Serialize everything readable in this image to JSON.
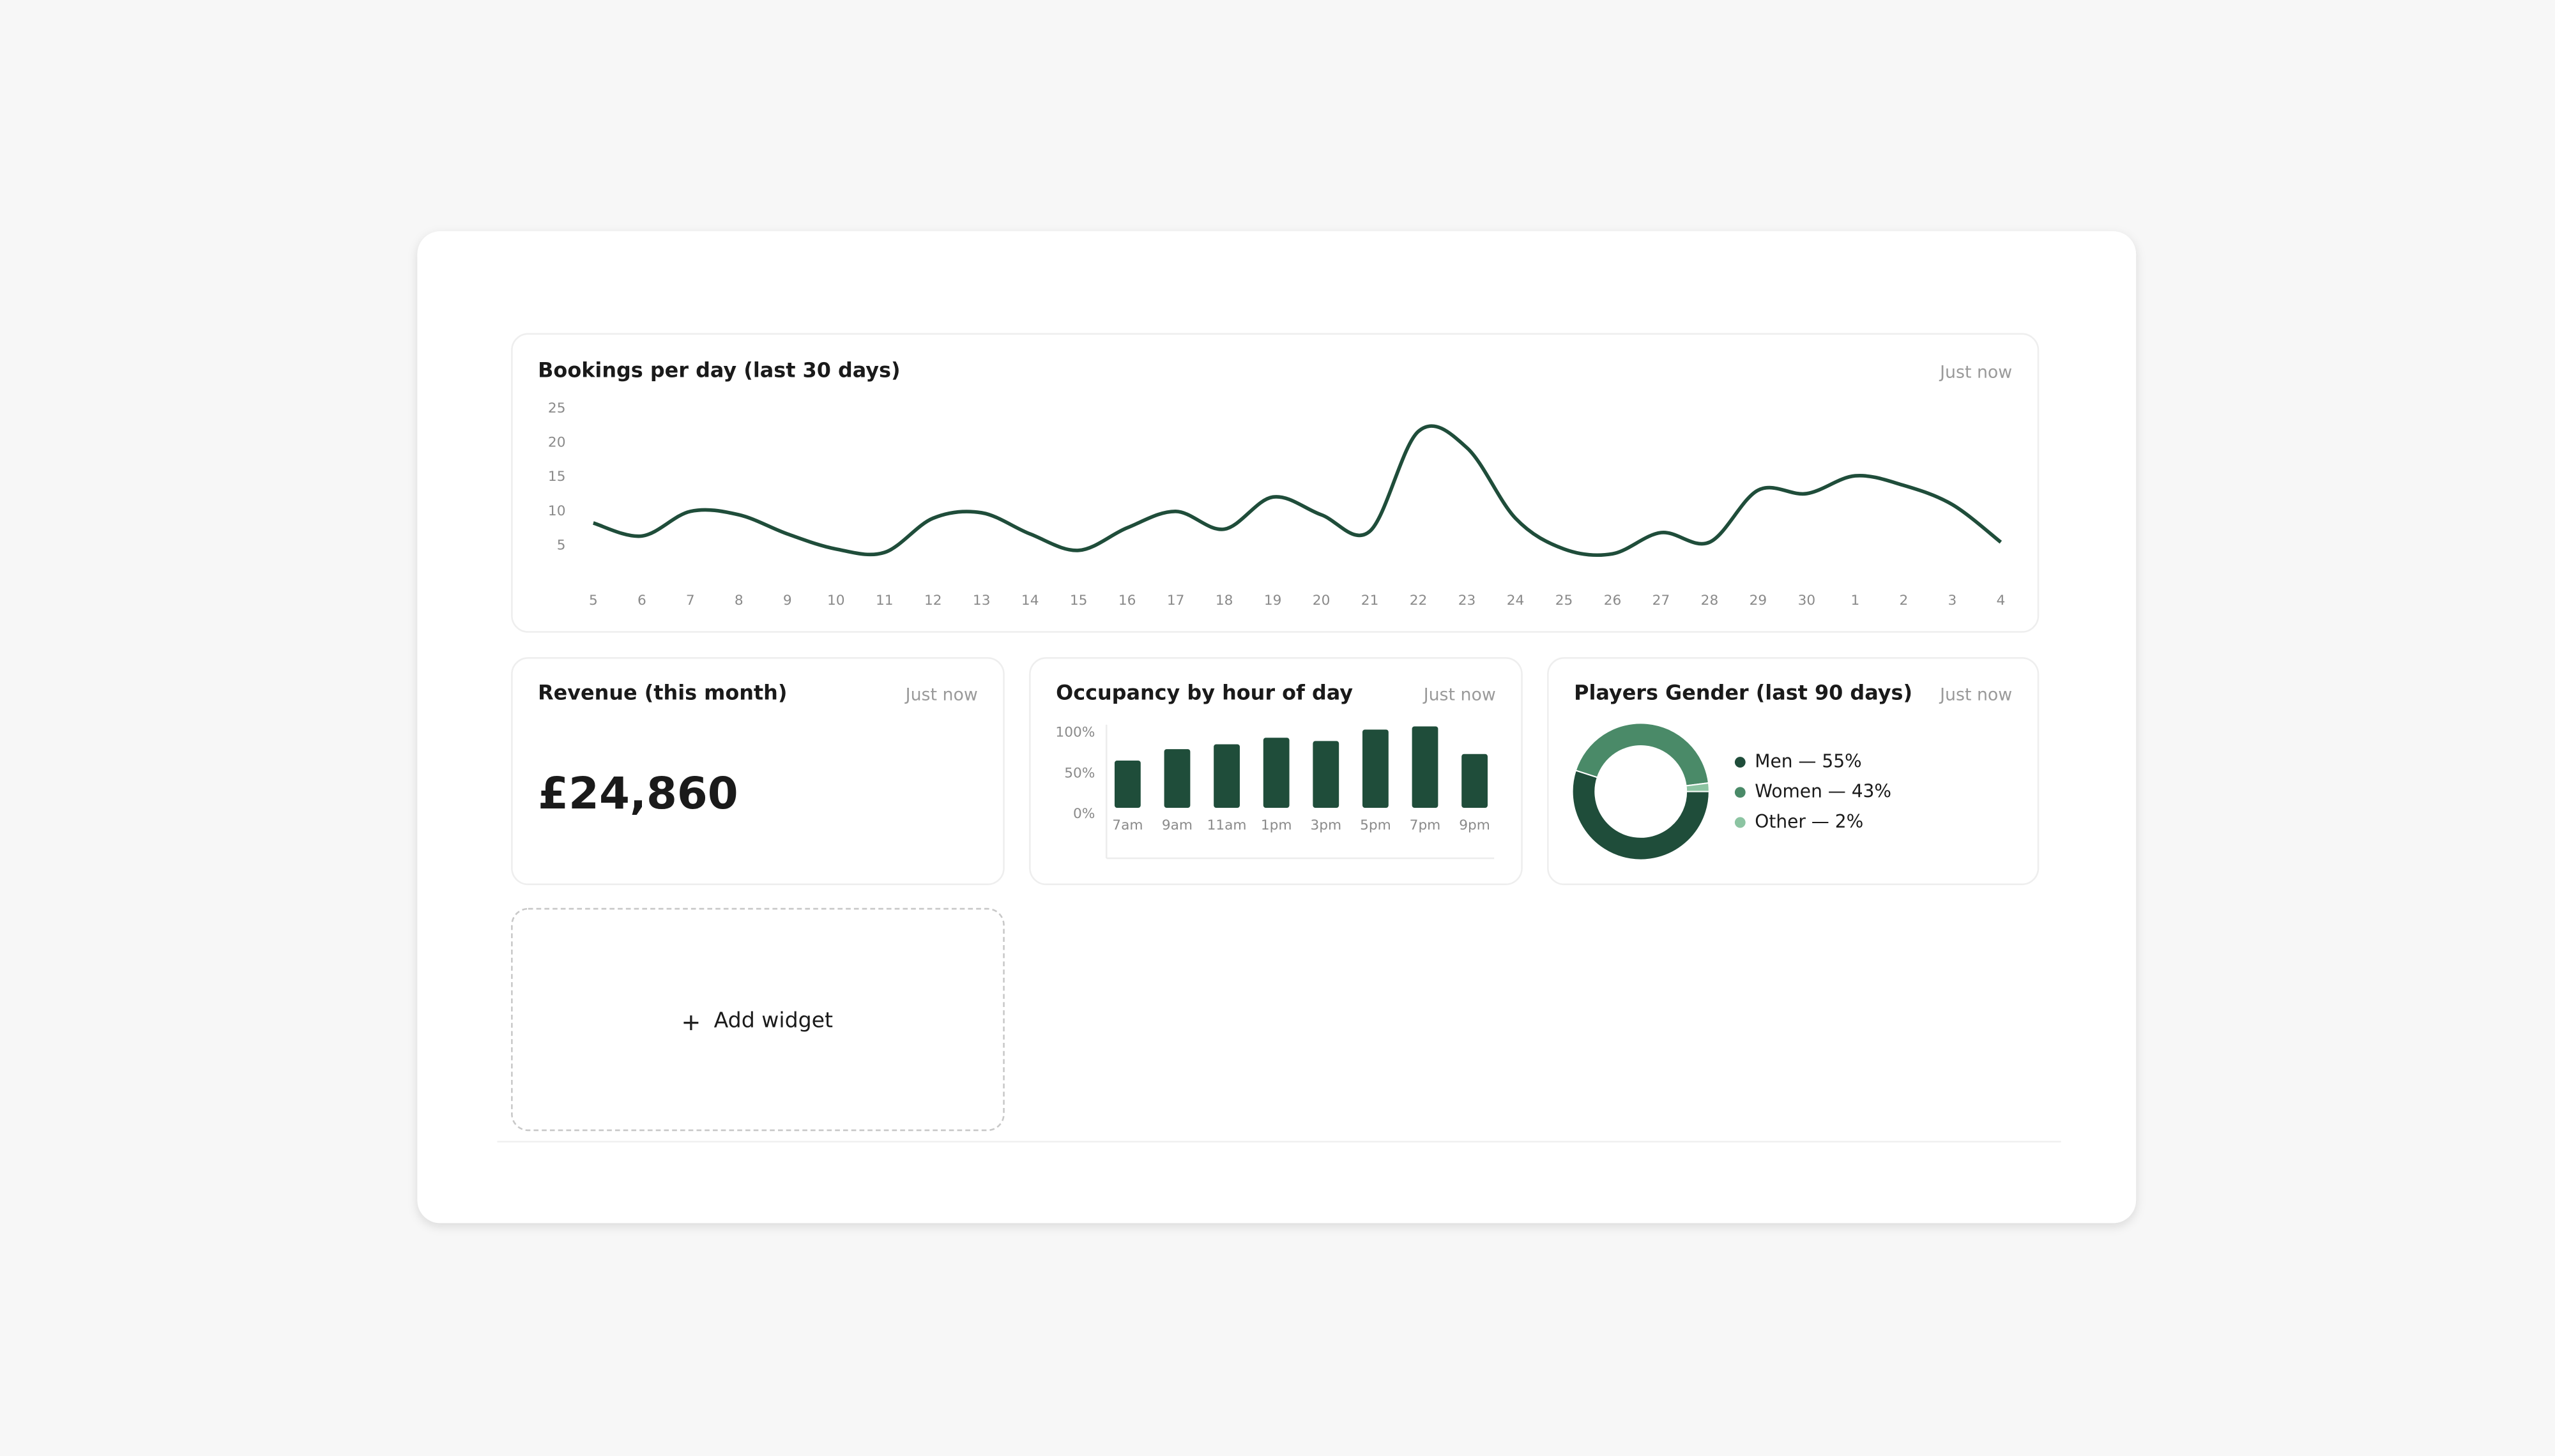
{
  "chart_data": [
    {
      "type": "line",
      "title": "Bookings per day (last 30 days)",
      "status": "Just now",
      "categories": [
        "5",
        "6",
        "7",
        "8",
        "9",
        "10",
        "11",
        "12",
        "13",
        "14",
        "15",
        "16",
        "17",
        "18",
        "19",
        "20",
        "21",
        "22",
        "23",
        "24",
        "25",
        "26",
        "27",
        "28",
        "29",
        "30",
        "1",
        "2",
        "3",
        "4"
      ],
      "values": [
        8.3,
        6.4,
        10,
        9.5,
        6.7,
        4.5,
        4,
        9,
        9.8,
        6.7,
        4.3,
        7.6,
        10,
        7.4,
        12.1,
        9.5,
        7.1,
        21.7,
        19.3,
        9,
        4.5,
        3.8,
        6.9,
        5.5,
        13.1,
        12.6,
        15.2,
        13.8,
        11,
        5.5
      ],
      "color": "#1f4d3a",
      "ylim": [
        0,
        25
      ],
      "yticks": [
        5,
        10,
        15,
        20,
        25
      ]
    },
    {
      "type": "bar",
      "title": "Occupancy by hour of day",
      "status": "Just now",
      "categories": [
        "7am",
        "9am",
        "11am",
        "1pm",
        "3pm",
        "5pm",
        "7pm",
        "9pm"
      ],
      "values": [
        58,
        72,
        78,
        86,
        82,
        96,
        100,
        66
      ],
      "color": "#1f4d3a",
      "ylim": [
        0,
        100
      ],
      "yticks": [
        {
          "value": 0,
          "label": "0%"
        },
        {
          "value": 50,
          "label": "50%"
        },
        {
          "value": 100,
          "label": "100%"
        }
      ]
    },
    {
      "type": "donut",
      "title": "Players Gender (last 90 days)",
      "status": "Just now",
      "categories": [
        "Men — 55%",
        "Women — 43%",
        "Other — 2%"
      ],
      "values": [
        55,
        43,
        2
      ],
      "colors": [
        "#1f4d3a",
        "#4a8a68",
        "#8cc4a2"
      ]
    }
  ],
  "revenue": {
    "title": "Revenue (this month)",
    "status": "Just now",
    "value": "£24,860"
  },
  "add_widget": {
    "label": "Add widget"
  }
}
